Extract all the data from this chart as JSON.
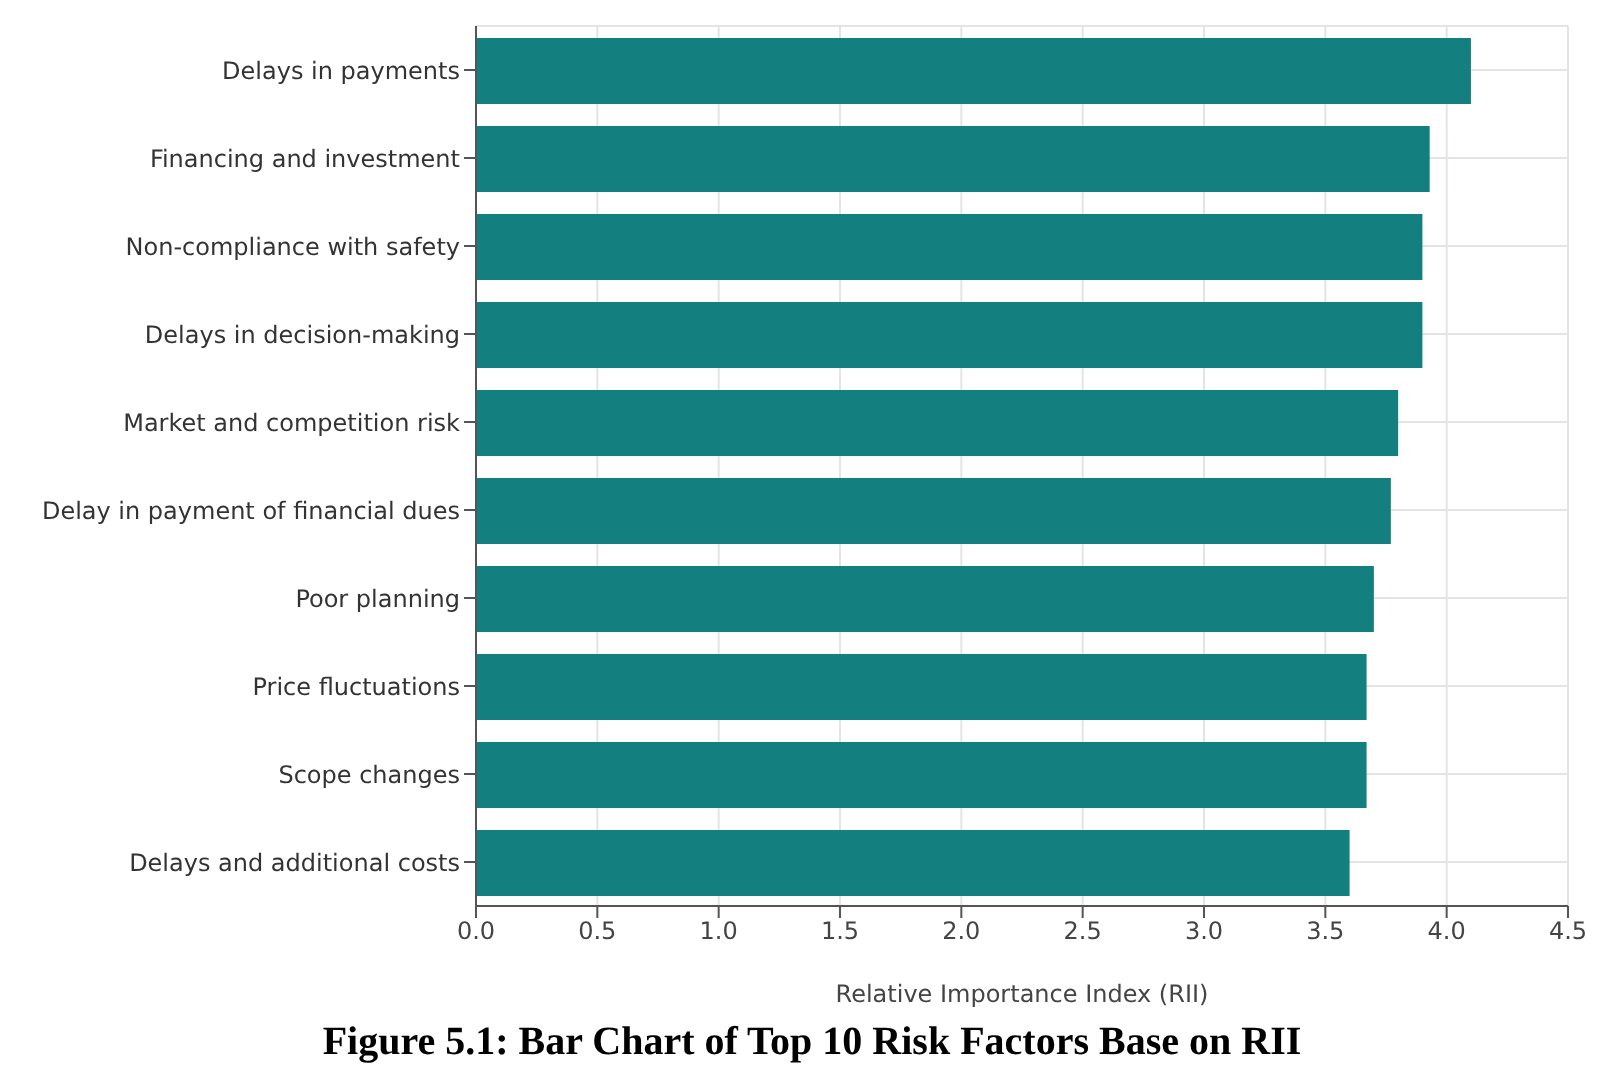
{
  "chart_data": {
    "type": "bar",
    "orientation": "horizontal",
    "title": "Figure 5.1: Bar Chart of Top 10 Risk Factors Base on RII",
    "xlabel": "Relative Importance Index (RII)",
    "categories": [
      "Delays in payments",
      "Financing and investment",
      "Non-compliance with safety",
      "Delays in decision-making",
      "Market and competition risk",
      "Delay in payment of financial dues",
      "Poor planning",
      "Price fluctuations",
      "Scope changes",
      "Delays and additional costs"
    ],
    "values": [
      4.1,
      3.93,
      3.9,
      3.9,
      3.8,
      3.77,
      3.7,
      3.67,
      3.67,
      3.6
    ],
    "color": "#137f7f",
    "xlim": [
      0,
      4.5
    ],
    "xticks": [
      {
        "value": 0,
        "label": "0.0"
      },
      0.5,
      {
        "value": 1,
        "label": "1.0"
      },
      1.5,
      {
        "value": 2,
        "label": "2.0"
      },
      2.5,
      {
        "value": 3,
        "label": "3.0"
      },
      3.5,
      {
        "value": 4,
        "label": "4.0"
      },
      4.5
    ],
    "grid": true
  }
}
